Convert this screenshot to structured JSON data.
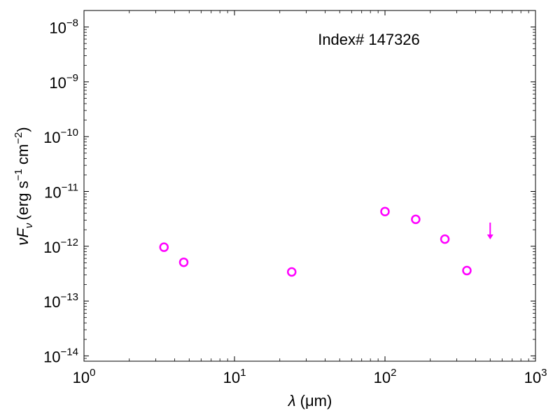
{
  "chart_data": {
    "type": "scatter",
    "xscale": "log",
    "yscale": "log",
    "xlim": [
      1,
      1000
    ],
    "ylim": [
      8e-15,
      2e-08
    ],
    "xlabel": {
      "symbol": "λ",
      "unit": "(μm)"
    },
    "ylabel": {
      "symbol": "νF",
      "subscript": "ν",
      "unit_prefix": "(erg s",
      "unit_exp1": "−1",
      "unit_mid": " cm",
      "unit_exp2": "−2",
      "unit_suffix": ")"
    },
    "annotation": "Index# 147326",
    "x_ticks": [
      {
        "value": 1,
        "base": "10",
        "exp": "0"
      },
      {
        "value": 10,
        "base": "10",
        "exp": "1"
      },
      {
        "value": 100,
        "base": "10",
        "exp": "2"
      },
      {
        "value": 1000,
        "base": "10",
        "exp": "3"
      }
    ],
    "y_ticks": [
      {
        "value": 1e-14,
        "base": "10",
        "exp": "−14"
      },
      {
        "value": 1e-13,
        "base": "10",
        "exp": "−13"
      },
      {
        "value": 1e-12,
        "base": "10",
        "exp": "−12"
      },
      {
        "value": 1e-11,
        "base": "10",
        "exp": "−11"
      },
      {
        "value": 1e-10,
        "base": "10",
        "exp": "−10"
      },
      {
        "value": 1e-09,
        "base": "10",
        "exp": "−9"
      },
      {
        "value": 1e-08,
        "base": "10",
        "exp": "−8"
      }
    ],
    "marker_color": "#ff00ff",
    "points": [
      {
        "x": 3.4,
        "y": 9.6e-13
      },
      {
        "x": 4.6,
        "y": 5.1e-13
      },
      {
        "x": 24,
        "y": 3.4e-13
      },
      {
        "x": 100,
        "y": 4.3e-12
      },
      {
        "x": 160,
        "y": 3.1e-12
      },
      {
        "x": 250,
        "y": 1.35e-12
      },
      {
        "x": 350,
        "y": 3.6e-13
      }
    ],
    "upper_limits": [
      {
        "x": 500,
        "y": 2.2e-12
      }
    ]
  }
}
